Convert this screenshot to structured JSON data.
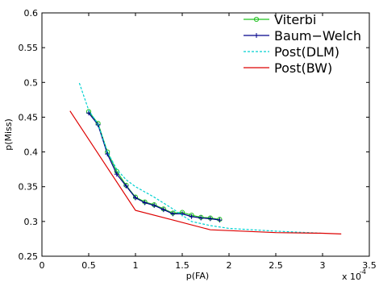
{
  "chart_data": {
    "type": "line",
    "title": "",
    "xlabel": "p(FA)",
    "ylabel": "p(Miss)",
    "x_exponent_label": "x 10",
    "x_exponent_power": "-4",
    "xlim": [
      0,
      3.5
    ],
    "ylim": [
      0.25,
      0.6
    ],
    "xticks": [
      0,
      0.5,
      1,
      1.5,
      2,
      2.5,
      3,
      3.5
    ],
    "xtick_labels": [
      "0",
      "0.5",
      "1",
      "1.5",
      "2",
      "2.5",
      "3",
      "3.5"
    ],
    "yticks": [
      0.25,
      0.3,
      0.35,
      0.4,
      0.45,
      0.5,
      0.55,
      0.6
    ],
    "ytick_labels": [
      "0.25",
      "0.3",
      "0.35",
      "0.4",
      "0.45",
      "0.5",
      "0.55",
      "0.6"
    ],
    "grid": false,
    "legend_position": "top-right",
    "series": [
      {
        "name": "Viterbi",
        "color": "#22c322",
        "style": "solid",
        "marker": "circle",
        "x": [
          0.5,
          0.6,
          0.7,
          0.8,
          0.9,
          1.0,
          1.1,
          1.2,
          1.3,
          1.4,
          1.5,
          1.6,
          1.7,
          1.8,
          1.9
        ],
        "y": [
          0.458,
          0.441,
          0.4,
          0.372,
          0.352,
          0.335,
          0.328,
          0.324,
          0.318,
          0.312,
          0.313,
          0.309,
          0.306,
          0.305,
          0.303
        ]
      },
      {
        "name": "Baum−Welch",
        "color": "#00008b",
        "style": "solid",
        "marker": "plus",
        "x": [
          0.5,
          0.6,
          0.7,
          0.8,
          0.9,
          1.0,
          1.1,
          1.2,
          1.3,
          1.4,
          1.5,
          1.6,
          1.7,
          1.8,
          1.9
        ],
        "y": [
          0.456,
          0.439,
          0.397,
          0.368,
          0.351,
          0.334,
          0.327,
          0.323,
          0.317,
          0.311,
          0.311,
          0.307,
          0.305,
          0.304,
          0.302
        ]
      },
      {
        "name": "Post(DLM)",
        "color": "#00d0d0",
        "style": "dashed",
        "marker": "none",
        "x": [
          0.4,
          0.5,
          0.6,
          0.7,
          0.8,
          0.9,
          1.0,
          1.2,
          1.4,
          1.6,
          1.8,
          2.0,
          2.5,
          3.0
        ],
        "y": [
          0.499,
          0.46,
          0.44,
          0.4,
          0.375,
          0.36,
          0.35,
          0.335,
          0.318,
          0.3,
          0.294,
          0.29,
          0.286,
          0.283
        ]
      },
      {
        "name": "Post(BW)",
        "color": "#dd0000",
        "style": "solid",
        "marker": "none",
        "x": [
          0.3,
          1.0,
          1.4,
          1.8,
          2.5,
          3.0,
          3.2
        ],
        "y": [
          0.459,
          0.316,
          0.302,
          0.288,
          0.284,
          0.283,
          0.282
        ]
      }
    ]
  }
}
